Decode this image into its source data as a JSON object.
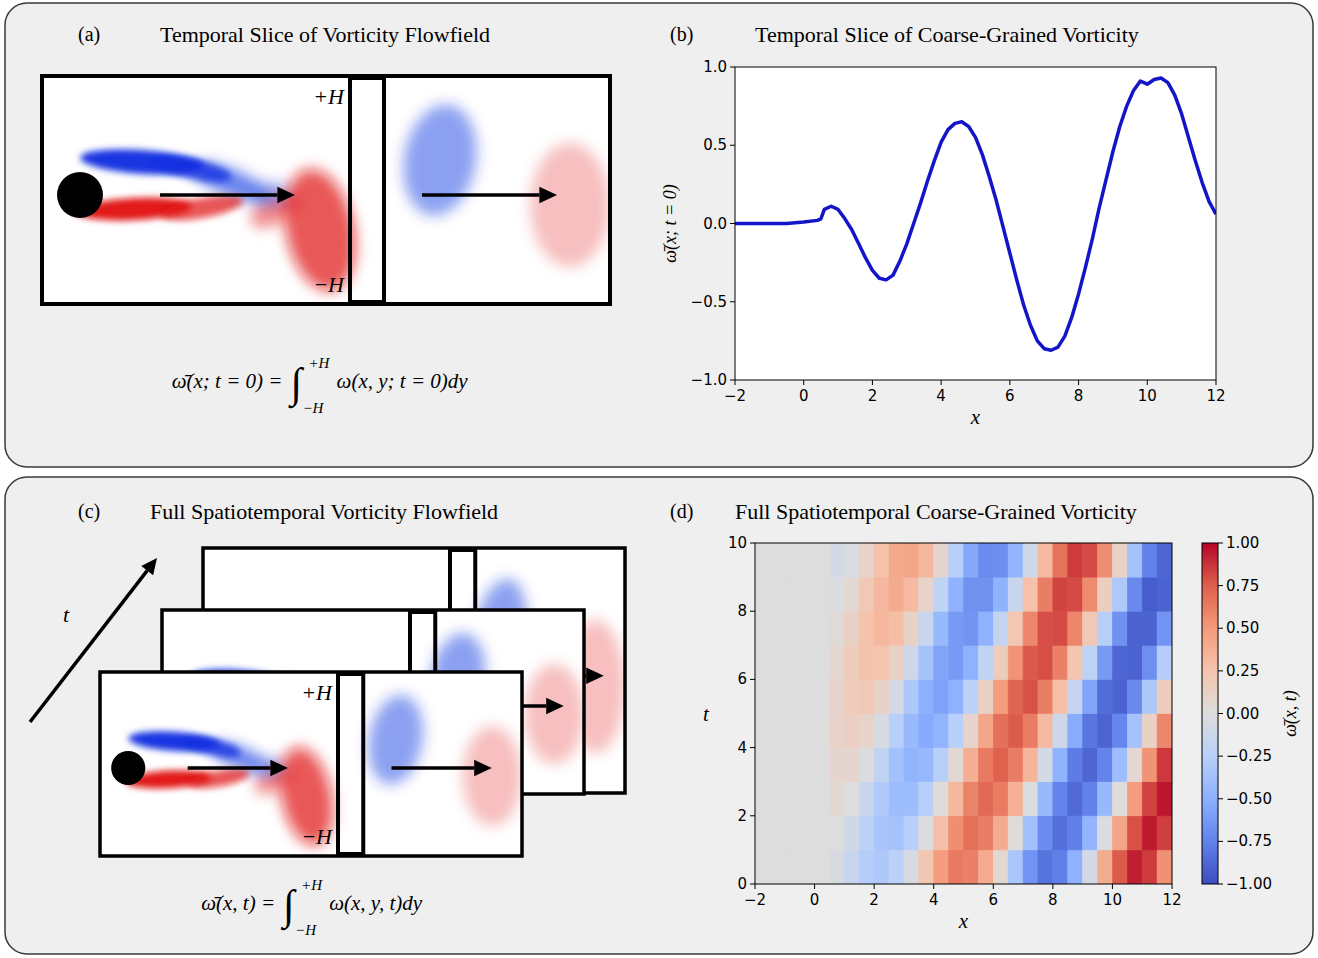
{
  "diagrams": [
    {
      "panel_label": "(a)",
      "title": "Temporal Slice of Vorticity Flowfield",
      "upper_label": "+H",
      "lower_label": "−H",
      "formula": {
        "lhs": "ω̄(x; t = 0) =",
        "integral": "∫",
        "upper": "+H",
        "lower": "−H",
        "integrand": "ω(x, y; t = 0)dy"
      }
    },
    {
      "panel_label": "(c)",
      "title": "Full Spatiotemporal Vorticity Flowfield",
      "time_label": "t",
      "upper_label": "+H",
      "lower_label": "−H",
      "formula": {
        "lhs": "ω̄(x, t) =",
        "integral": "∫",
        "upper": "+H",
        "lower": "−H",
        "integrand": "ω(x, y, t)dy"
      }
    }
  ],
  "chart_data": [
    {
      "panel_label": "(b)",
      "type": "line",
      "title": "Temporal Slice of Coarse-Grained Vorticity",
      "x_label": "x",
      "y_label": "ω̄(x; t = 0)",
      "color": "#1414c8",
      "grid": false,
      "x": [
        -2,
        -1.5,
        -1,
        -0.5,
        0,
        0.4,
        0.5,
        0.6,
        0.8,
        1.0,
        1.2,
        1.4,
        1.6,
        1.8,
        2.0,
        2.2,
        2.4,
        2.6,
        2.8,
        3.0,
        3.2,
        3.4,
        3.6,
        3.8,
        4.0,
        4.2,
        4.4,
        4.6,
        4.8,
        5.0,
        5.2,
        5.4,
        5.6,
        5.8,
        6.0,
        6.2,
        6.4,
        6.6,
        6.8,
        7.0,
        7.2,
        7.4,
        7.6,
        7.8,
        8.0,
        8.2,
        8.4,
        8.6,
        8.8,
        9.0,
        9.2,
        9.4,
        9.6,
        9.8,
        10.0,
        10.2,
        10.4,
        10.6,
        10.8,
        11.0,
        11.2,
        11.4,
        11.6,
        11.8,
        12.0
      ],
      "values": [
        0,
        0,
        0,
        0,
        0.01,
        0.02,
        0.03,
        0.09,
        0.11,
        0.09,
        0.03,
        -0.04,
        -0.13,
        -0.22,
        -0.3,
        -0.35,
        -0.36,
        -0.33,
        -0.24,
        -0.13,
        0.0,
        0.13,
        0.27,
        0.4,
        0.52,
        0.6,
        0.64,
        0.65,
        0.62,
        0.55,
        0.44,
        0.3,
        0.15,
        -0.02,
        -0.19,
        -0.36,
        -0.52,
        -0.65,
        -0.75,
        -0.8,
        -0.81,
        -0.79,
        -0.72,
        -0.6,
        -0.45,
        -0.28,
        -0.1,
        0.1,
        0.28,
        0.46,
        0.62,
        0.75,
        0.85,
        0.91,
        0.89,
        0.92,
        0.93,
        0.9,
        0.82,
        0.7,
        0.55,
        0.4,
        0.26,
        0.14,
        0.06
      ],
      "xlim": [
        -2,
        12
      ],
      "ylim": [
        -1,
        1
      ],
      "xticks": [
        {
          "value": -2,
          "label": "−2"
        },
        0,
        2,
        4,
        6,
        8,
        10,
        12
      ],
      "yticks": [
        {
          "value": -1,
          "label": "−1.0"
        },
        {
          "value": -0.5,
          "label": "−0.5"
        },
        {
          "value": 0,
          "label": "0.0"
        },
        {
          "value": 0.5,
          "label": "0.5"
        },
        {
          "value": 1,
          "label": "1.0"
        }
      ]
    },
    {
      "panel_label": "(d)",
      "type": "heatmap",
      "title": "Full Spatiotemporal Coarse-Grained Vorticity",
      "x_label": "x",
      "y_label": "t",
      "x": [
        -1.75,
        -1.25,
        -0.75,
        -0.25,
        0.25,
        0.75,
        1.25,
        1.75,
        2.25,
        2.75,
        3.25,
        3.75,
        4.25,
        4.75,
        5.25,
        5.75,
        6.25,
        6.75,
        7.25,
        7.75,
        8.25,
        8.75,
        9.25,
        9.75,
        10.25,
        10.75,
        11.25,
        11.75
      ],
      "y": [
        0.5,
        1.5,
        2.5,
        3.5,
        4.5,
        5.5,
        6.5,
        7.5,
        8.5,
        9.5
      ],
      "values": [
        [
          0,
          0,
          0,
          0,
          0,
          -0.04,
          -0.15,
          -0.27,
          -0.31,
          -0.23,
          -0.04,
          0.23,
          0.49,
          0.64,
          0.61,
          0.4,
          0.06,
          -0.33,
          -0.66,
          -0.82,
          -0.76,
          -0.49,
          -0.07,
          0.39,
          0.76,
          0.93,
          0.85,
          0.54
        ],
        [
          0,
          0,
          0,
          0,
          0,
          0,
          -0.09,
          -0.23,
          -0.34,
          -0.36,
          -0.25,
          -0.01,
          0.28,
          0.55,
          0.68,
          0.62,
          0.39,
          0.02,
          -0.38,
          -0.7,
          -0.84,
          -0.76,
          -0.46,
          -0.02,
          0.44,
          0.79,
          0.94,
          0.84
        ],
        [
          0,
          0,
          0,
          0,
          0,
          0.05,
          0,
          -0.14,
          -0.3,
          -0.41,
          -0.4,
          -0.25,
          0.02,
          0.33,
          0.6,
          0.71,
          0.63,
          0.37,
          -0.02,
          -0.43,
          -0.74,
          -0.86,
          -0.75,
          -0.43,
          0.02,
          0.49,
          0.83,
          0.95
        ],
        [
          0,
          0,
          0,
          0,
          0,
          0.08,
          0.08,
          -0.02,
          -0.19,
          -0.37,
          -0.47,
          -0.44,
          -0.25,
          0.05,
          0.38,
          0.64,
          0.74,
          0.63,
          0.34,
          -0.06,
          -0.48,
          -0.78,
          -0.88,
          -0.74,
          -0.4,
          0.07,
          0.53,
          0.86
        ],
        [
          0,
          0,
          0,
          0,
          0,
          0.1,
          0.14,
          0.1,
          -0.04,
          -0.25,
          -0.43,
          -0.53,
          -0.47,
          -0.25,
          0.09,
          0.43,
          0.68,
          0.76,
          0.63,
          0.31,
          -0.11,
          -0.52,
          -0.81,
          -0.89,
          -0.73,
          -0.36,
          0.12,
          0.58
        ],
        [
          0,
          0,
          0,
          0,
          0,
          0.09,
          0.18,
          0.21,
          0.11,
          -0.07,
          -0.31,
          -0.5,
          -0.58,
          -0.49,
          -0.23,
          0.13,
          0.48,
          0.73,
          0.79,
          0.62,
          0.28,
          -0.16,
          -0.57,
          -0.85,
          -0.9,
          -0.71,
          -0.31,
          0.17
        ],
        [
          0,
          0,
          0,
          0,
          0,
          0.07,
          0.17,
          0.26,
          0.25,
          0.12,
          -0.11,
          -0.36,
          -0.57,
          -0.62,
          -0.49,
          -0.2,
          0.17,
          0.53,
          0.77,
          0.8,
          0.61,
          0.24,
          -0.21,
          -0.62,
          -0.88,
          -0.9,
          -0.68,
          -0.27
        ],
        [
          0,
          0,
          0,
          0,
          0,
          0.03,
          0.13,
          0.26,
          0.33,
          0.28,
          0.11,
          -0.15,
          -0.43,
          -0.62,
          -0.65,
          -0.49,
          -0.17,
          0.22,
          0.58,
          0.8,
          0.81,
          0.59,
          0.21,
          -0.26,
          -0.67,
          -0.9,
          -0.9,
          -0.65
        ],
        [
          0,
          0,
          0,
          0,
          0,
          -0.02,
          0.06,
          0.21,
          0.33,
          0.39,
          0.31,
          0.1,
          -0.2,
          -0.49,
          -0.67,
          -0.67,
          -0.48,
          -0.14,
          0.27,
          0.62,
          0.83,
          0.81,
          0.57,
          0.16,
          -0.31,
          -0.71,
          -0.92,
          -0.9
        ],
        [
          0,
          0,
          0,
          0,
          0,
          -0.06,
          -0.02,
          0.1,
          0.27,
          0.41,
          0.43,
          0.32,
          0.08,
          -0.25,
          -0.54,
          -0.7,
          -0.68,
          -0.47,
          -0.1,
          0.31,
          0.67,
          0.85,
          0.81,
          0.55,
          0.12,
          -0.37,
          -0.75,
          -0.88
        ]
      ],
      "xlim": [
        -2,
        12
      ],
      "ylim": [
        0,
        10
      ],
      "xticks": [
        {
          "value": -2,
          "label": "−2"
        },
        0,
        2,
        4,
        6,
        8,
        10,
        12
      ],
      "yticks": [
        0,
        2,
        4,
        6,
        8,
        10
      ],
      "colorbar": {
        "label": "ω̄(x, t)",
        "range": [
          -1,
          1
        ],
        "ticks": [
          {
            "value": -1,
            "label": "−1.00"
          },
          {
            "value": -0.75,
            "label": "−0.75"
          },
          {
            "value": -0.5,
            "label": "−0.50"
          },
          {
            "value": -0.25,
            "label": "−0.25"
          },
          {
            "value": 0,
            "label": "0.00"
          },
          {
            "value": 0.25,
            "label": "0.25"
          },
          {
            "value": 0.5,
            "label": "0.50"
          },
          {
            "value": 0.75,
            "label": "0.75"
          },
          {
            "value": 1,
            "label": "1.00"
          }
        ]
      }
    }
  ]
}
